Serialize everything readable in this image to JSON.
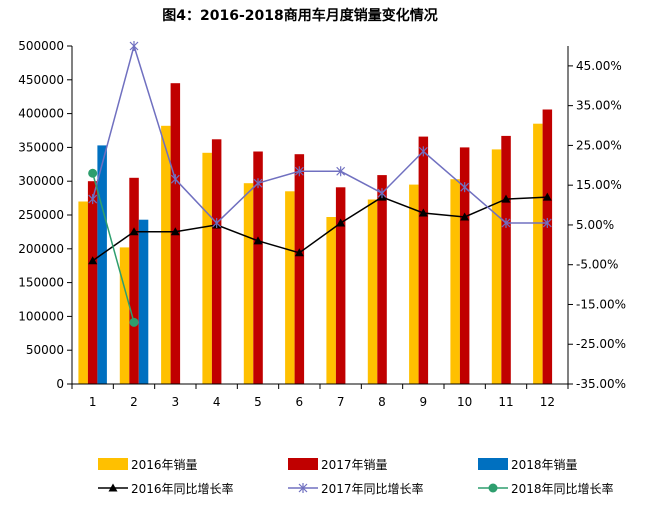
{
  "chart_data": {
    "type": "bar",
    "title": "图4：2016-2018商用车月度销量变化情况",
    "categories": [
      "1",
      "2",
      "3",
      "4",
      "5",
      "6",
      "7",
      "8",
      "9",
      "10",
      "11",
      "12"
    ],
    "y_left": {
      "min": 0,
      "max": 500000,
      "step": 50000,
      "ticks": [
        "0",
        "50000",
        "100000",
        "150000",
        "200000",
        "250000",
        "300000",
        "350000",
        "400000",
        "450000",
        "500000"
      ]
    },
    "y_right": {
      "min": -35,
      "max": 50,
      "step": 10,
      "ticks": [
        "-35.00%",
        "-25.00%",
        "-15.00%",
        "-5.00%",
        "5.00%",
        "15.00%",
        "25.00%",
        "35.00%",
        "45.00%"
      ]
    },
    "bar_series": [
      {
        "name": "2016年销量",
        "color": "#FFC000",
        "values": [
          270000,
          202000,
          382000,
          342000,
          297000,
          285000,
          247000,
          273000,
          295000,
          303000,
          347000,
          385000
        ]
      },
      {
        "name": "2017年销量",
        "color": "#C00000",
        "values": [
          300000,
          305000,
          445000,
          362000,
          344000,
          340000,
          291000,
          309000,
          366000,
          350000,
          367000,
          406000
        ]
      },
      {
        "name": "2018年销量",
        "color": "#0070C0",
        "values": [
          353000,
          243000,
          null,
          null,
          null,
          null,
          null,
          null,
          null,
          null,
          null,
          null
        ]
      }
    ],
    "line_series": [
      {
        "name": "2016年同比增长率",
        "color": "#000000",
        "marker": "triangle",
        "values": [
          -4.0,
          3.3,
          3.3,
          5.0,
          1.0,
          -2.0,
          5.5,
          12.0,
          8.0,
          7.0,
          11.5,
          12.0
        ]
      },
      {
        "name": "2017年同比增长率",
        "color": "#7070C0",
        "marker": "star",
        "values": [
          11.5,
          50.0,
          16.5,
          5.5,
          15.5,
          18.5,
          18.5,
          13.0,
          23.5,
          14.5,
          5.5,
          5.5
        ]
      },
      {
        "name": "2018年同比增长率",
        "color": "#2E9E6E",
        "marker": "circle",
        "values": [
          18.0,
          -19.5,
          null,
          null,
          null,
          null,
          null,
          null,
          null,
          null,
          null,
          null
        ]
      }
    ],
    "legend_position": "bottom",
    "grid": false
  }
}
